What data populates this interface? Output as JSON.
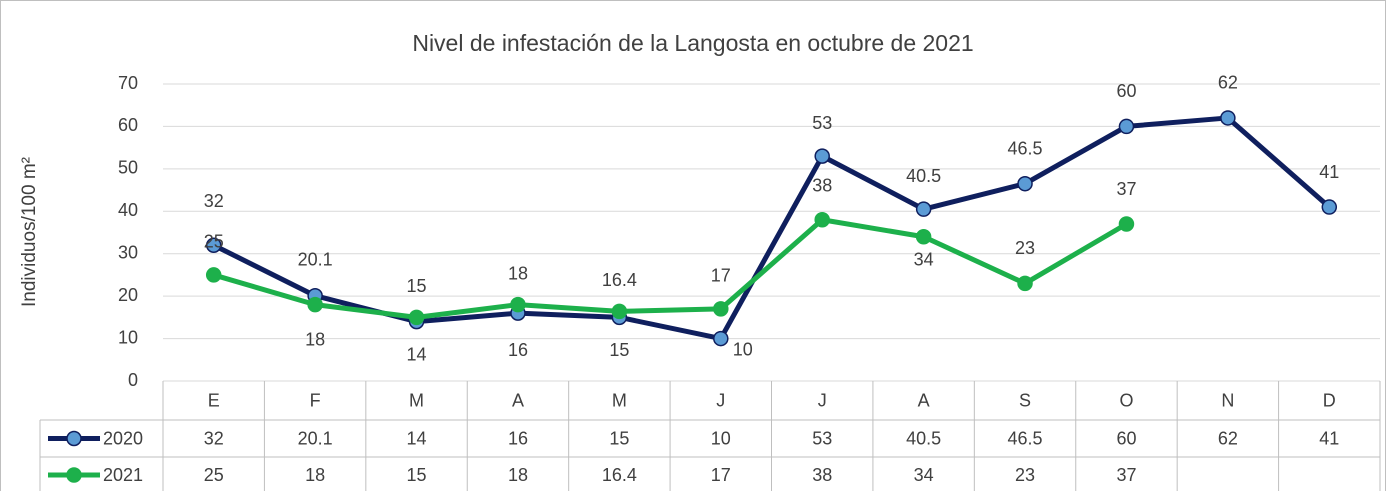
{
  "chart_data": {
    "type": "line",
    "title": "Nivel de infestación de la Langosta en octubre de 2021",
    "y_label": "Individuos/100 m²",
    "categories": [
      "E",
      "F",
      "M",
      "A",
      "M",
      "J",
      "J",
      "A",
      "S",
      "O",
      "N",
      "D"
    ],
    "series": [
      {
        "name": "2020",
        "color": "#0f1f5e",
        "marker_color": "#5b9bd5",
        "values": [
          32,
          20.1,
          14,
          16,
          15,
          10,
          53,
          40.5,
          46.5,
          60,
          62,
          41
        ]
      },
      {
        "name": "2021",
        "color": "#1db04b",
        "marker_color": "#1db04b",
        "values": [
          25,
          18,
          15,
          18,
          16.4,
          17,
          38,
          34,
          23,
          37,
          null,
          null
        ]
      }
    ],
    "ylim": [
      0,
      70
    ],
    "yticks": [
      0,
      10,
      20,
      30,
      40,
      50,
      60,
      70
    ],
    "grid": true,
    "data_table": true
  }
}
